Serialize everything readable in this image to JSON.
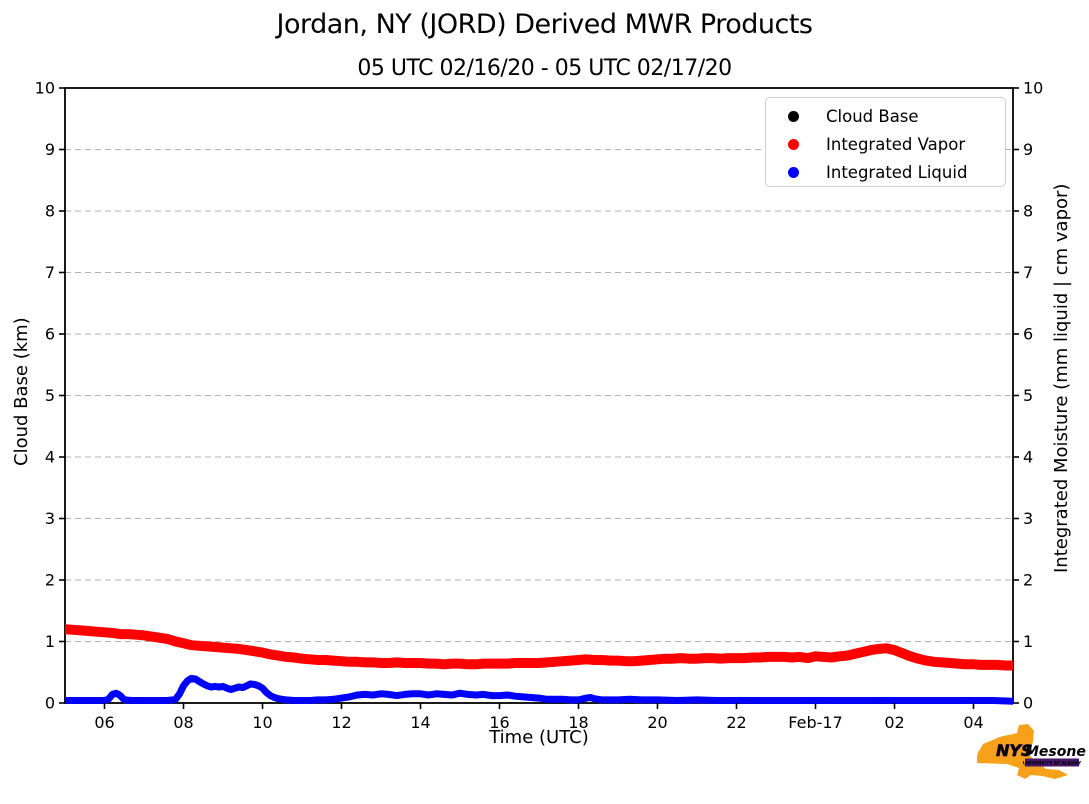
{
  "chart_data": {
    "type": "scatter",
    "title": "Jordan, NY (JORD) Derived MWR Products",
    "subtitle": "05 UTC 02/16/20 - 05 UTC 02/17/20",
    "xlabel": "Time (UTC)",
    "ylabel_left": "Cloud Base (km)",
    "ylabel_right": "Integrated Moisture (mm liquid | cm vapor)",
    "xlim_hours": [
      5,
      29
    ],
    "ylim": [
      0,
      10
    ],
    "grid": {
      "horizontal": true,
      "vertical": false,
      "style": "dashed",
      "color": "#b3b3b3"
    },
    "x_ticks": [
      {
        "t": 6,
        "label": "06"
      },
      {
        "t": 8,
        "label": "08"
      },
      {
        "t": 10,
        "label": "10"
      },
      {
        "t": 12,
        "label": "12"
      },
      {
        "t": 14,
        "label": "14"
      },
      {
        "t": 16,
        "label": "16"
      },
      {
        "t": 18,
        "label": "18"
      },
      {
        "t": 20,
        "label": "20"
      },
      {
        "t": 22,
        "label": "22"
      },
      {
        "t": 24,
        "label": "Feb-17"
      },
      {
        "t": 26,
        "label": "02"
      },
      {
        "t": 28,
        "label": "04"
      }
    ],
    "y_ticks_left": [
      "0",
      "1",
      "2",
      "3",
      "4",
      "5",
      "6",
      "7",
      "8",
      "9",
      "10"
    ],
    "y_ticks_right": [
      "0",
      "1",
      "2",
      "3",
      "4",
      "5",
      "6",
      "7",
      "8",
      "9",
      "10"
    ],
    "legend": {
      "position": "upper right",
      "items": [
        {
          "label": "Cloud Base",
          "color": "#000000"
        },
        {
          "label": "Integrated Vapor",
          "color": "#ff0000"
        },
        {
          "label": "Integrated Liquid",
          "color": "#0000ff"
        }
      ]
    },
    "series": [
      {
        "name": "Cloud Base",
        "color": "#000000",
        "marker": "dot",
        "stroke": 8,
        "points": []
      },
      {
        "name": "Integrated Vapor",
        "color": "#ff0000",
        "marker": "dot",
        "stroke": 10,
        "points": [
          [
            5.0,
            1.2
          ],
          [
            5.2,
            1.19
          ],
          [
            5.4,
            1.18
          ],
          [
            5.6,
            1.17
          ],
          [
            5.8,
            1.16
          ],
          [
            6.0,
            1.15
          ],
          [
            6.2,
            1.14
          ],
          [
            6.4,
            1.12
          ],
          [
            6.6,
            1.12
          ],
          [
            6.8,
            1.11
          ],
          [
            7.0,
            1.1
          ],
          [
            7.2,
            1.08
          ],
          [
            7.4,
            1.06
          ],
          [
            7.6,
            1.04
          ],
          [
            7.8,
            1.0
          ],
          [
            8.0,
            0.97
          ],
          [
            8.2,
            0.94
          ],
          [
            8.4,
            0.93
          ],
          [
            8.6,
            0.92
          ],
          [
            8.8,
            0.91
          ],
          [
            9.0,
            0.9
          ],
          [
            9.2,
            0.89
          ],
          [
            9.4,
            0.88
          ],
          [
            9.6,
            0.86
          ],
          [
            9.8,
            0.84
          ],
          [
            10.0,
            0.82
          ],
          [
            10.2,
            0.79
          ],
          [
            10.4,
            0.77
          ],
          [
            10.6,
            0.75
          ],
          [
            10.8,
            0.74
          ],
          [
            11.0,
            0.72
          ],
          [
            11.2,
            0.71
          ],
          [
            11.4,
            0.7
          ],
          [
            11.6,
            0.7
          ],
          [
            11.8,
            0.69
          ],
          [
            12.0,
            0.68
          ],
          [
            12.2,
            0.67
          ],
          [
            12.4,
            0.67
          ],
          [
            12.6,
            0.66
          ],
          [
            12.8,
            0.66
          ],
          [
            13.0,
            0.65
          ],
          [
            13.2,
            0.65
          ],
          [
            13.4,
            0.66
          ],
          [
            13.6,
            0.65
          ],
          [
            13.8,
            0.65
          ],
          [
            14.0,
            0.65
          ],
          [
            14.2,
            0.64
          ],
          [
            14.4,
            0.64
          ],
          [
            14.6,
            0.63
          ],
          [
            14.8,
            0.64
          ],
          [
            15.0,
            0.64
          ],
          [
            15.2,
            0.63
          ],
          [
            15.4,
            0.63
          ],
          [
            15.6,
            0.64
          ],
          [
            15.8,
            0.64
          ],
          [
            16.0,
            0.64
          ],
          [
            16.2,
            0.64
          ],
          [
            16.4,
            0.65
          ],
          [
            16.6,
            0.65
          ],
          [
            16.8,
            0.65
          ],
          [
            17.0,
            0.65
          ],
          [
            17.2,
            0.66
          ],
          [
            17.4,
            0.67
          ],
          [
            17.6,
            0.68
          ],
          [
            17.8,
            0.69
          ],
          [
            18.0,
            0.7
          ],
          [
            18.2,
            0.71
          ],
          [
            18.4,
            0.7
          ],
          [
            18.6,
            0.7
          ],
          [
            18.8,
            0.69
          ],
          [
            19.0,
            0.69
          ],
          [
            19.2,
            0.68
          ],
          [
            19.4,
            0.68
          ],
          [
            19.6,
            0.69
          ],
          [
            19.8,
            0.7
          ],
          [
            20.0,
            0.71
          ],
          [
            20.2,
            0.72
          ],
          [
            20.4,
            0.72
          ],
          [
            20.6,
            0.73
          ],
          [
            20.8,
            0.72
          ],
          [
            21.0,
            0.72
          ],
          [
            21.2,
            0.73
          ],
          [
            21.4,
            0.73
          ],
          [
            21.6,
            0.72
          ],
          [
            21.8,
            0.73
          ],
          [
            22.0,
            0.73
          ],
          [
            22.2,
            0.73
          ],
          [
            22.4,
            0.74
          ],
          [
            22.6,
            0.74
          ],
          [
            22.8,
            0.75
          ],
          [
            23.0,
            0.75
          ],
          [
            23.2,
            0.75
          ],
          [
            23.4,
            0.74
          ],
          [
            23.6,
            0.75
          ],
          [
            23.8,
            0.73
          ],
          [
            24.0,
            0.76
          ],
          [
            24.2,
            0.75
          ],
          [
            24.4,
            0.74
          ],
          [
            24.6,
            0.76
          ],
          [
            24.8,
            0.77
          ],
          [
            25.0,
            0.8
          ],
          [
            25.2,
            0.83
          ],
          [
            25.4,
            0.86
          ],
          [
            25.6,
            0.88
          ],
          [
            25.8,
            0.89
          ],
          [
            26.0,
            0.86
          ],
          [
            26.2,
            0.81
          ],
          [
            26.4,
            0.76
          ],
          [
            26.6,
            0.72
          ],
          [
            26.8,
            0.69
          ],
          [
            27.0,
            0.67
          ],
          [
            27.2,
            0.66
          ],
          [
            27.4,
            0.65
          ],
          [
            27.6,
            0.64
          ],
          [
            27.8,
            0.63
          ],
          [
            28.0,
            0.63
          ],
          [
            28.2,
            0.62
          ],
          [
            28.4,
            0.62
          ],
          [
            28.6,
            0.62
          ],
          [
            28.8,
            0.61
          ],
          [
            29.0,
            0.61
          ]
        ]
      },
      {
        "name": "Integrated Liquid",
        "color": "#0000ff",
        "marker": "dot",
        "stroke": 7,
        "points": [
          [
            5.0,
            0.04
          ],
          [
            5.2,
            0.04
          ],
          [
            5.4,
            0.04
          ],
          [
            5.6,
            0.04
          ],
          [
            5.8,
            0.04
          ],
          [
            6.0,
            0.04
          ],
          [
            6.1,
            0.06
          ],
          [
            6.2,
            0.14
          ],
          [
            6.3,
            0.16
          ],
          [
            6.4,
            0.12
          ],
          [
            6.5,
            0.05
          ],
          [
            6.7,
            0.04
          ],
          [
            7.0,
            0.04
          ],
          [
            7.3,
            0.04
          ],
          [
            7.6,
            0.04
          ],
          [
            7.8,
            0.06
          ],
          [
            7.9,
            0.15
          ],
          [
            8.0,
            0.28
          ],
          [
            8.1,
            0.36
          ],
          [
            8.2,
            0.4
          ],
          [
            8.3,
            0.39
          ],
          [
            8.4,
            0.35
          ],
          [
            8.5,
            0.31
          ],
          [
            8.6,
            0.28
          ],
          [
            8.7,
            0.26
          ],
          [
            8.8,
            0.27
          ],
          [
            8.9,
            0.26
          ],
          [
            9.0,
            0.27
          ],
          [
            9.1,
            0.24
          ],
          [
            9.2,
            0.22
          ],
          [
            9.3,
            0.24
          ],
          [
            9.4,
            0.26
          ],
          [
            9.5,
            0.25
          ],
          [
            9.6,
            0.28
          ],
          [
            9.7,
            0.31
          ],
          [
            9.8,
            0.3
          ],
          [
            9.9,
            0.28
          ],
          [
            10.0,
            0.24
          ],
          [
            10.1,
            0.17
          ],
          [
            10.2,
            0.12
          ],
          [
            10.3,
            0.09
          ],
          [
            10.4,
            0.07
          ],
          [
            10.6,
            0.05
          ],
          [
            10.8,
            0.04
          ],
          [
            11.0,
            0.04
          ],
          [
            11.2,
            0.04
          ],
          [
            11.4,
            0.05
          ],
          [
            11.6,
            0.05
          ],
          [
            11.8,
            0.06
          ],
          [
            12.0,
            0.08
          ],
          [
            12.2,
            0.1
          ],
          [
            12.4,
            0.13
          ],
          [
            12.6,
            0.14
          ],
          [
            12.8,
            0.13
          ],
          [
            13.0,
            0.15
          ],
          [
            13.2,
            0.14
          ],
          [
            13.4,
            0.12
          ],
          [
            13.6,
            0.14
          ],
          [
            13.8,
            0.15
          ],
          [
            14.0,
            0.15
          ],
          [
            14.2,
            0.13
          ],
          [
            14.4,
            0.15
          ],
          [
            14.6,
            0.14
          ],
          [
            14.8,
            0.13
          ],
          [
            15.0,
            0.16
          ],
          [
            15.2,
            0.14
          ],
          [
            15.4,
            0.13
          ],
          [
            15.6,
            0.14
          ],
          [
            15.8,
            0.12
          ],
          [
            16.0,
            0.12
          ],
          [
            16.2,
            0.13
          ],
          [
            16.4,
            0.11
          ],
          [
            16.6,
            0.1
          ],
          [
            16.8,
            0.09
          ],
          [
            17.0,
            0.08
          ],
          [
            17.2,
            0.06
          ],
          [
            17.4,
            0.06
          ],
          [
            17.6,
            0.06
          ],
          [
            17.8,
            0.05
          ],
          [
            18.0,
            0.05
          ],
          [
            18.2,
            0.08
          ],
          [
            18.3,
            0.09
          ],
          [
            18.4,
            0.07
          ],
          [
            18.6,
            0.05
          ],
          [
            18.8,
            0.05
          ],
          [
            19.0,
            0.05
          ],
          [
            19.3,
            0.06
          ],
          [
            19.6,
            0.05
          ],
          [
            20.0,
            0.05
          ],
          [
            20.5,
            0.04
          ],
          [
            21.0,
            0.05
          ],
          [
            21.5,
            0.04
          ],
          [
            22.0,
            0.04
          ],
          [
            22.5,
            0.04
          ],
          [
            23.0,
            0.04
          ],
          [
            23.5,
            0.04
          ],
          [
            24.0,
            0.04
          ],
          [
            24.5,
            0.04
          ],
          [
            25.0,
            0.04
          ],
          [
            25.5,
            0.04
          ],
          [
            26.0,
            0.04
          ],
          [
            26.5,
            0.04
          ],
          [
            27.0,
            0.04
          ],
          [
            27.5,
            0.04
          ],
          [
            28.0,
            0.04
          ],
          [
            28.5,
            0.04
          ],
          [
            29.0,
            0.03
          ]
        ]
      }
    ]
  },
  "logo": {
    "org": "NYS",
    "name": "Mesonet",
    "tagline": "UNIVERSITY AT ALBANY",
    "state_color": "#F7A11B",
    "accent_color": "#46166B"
  }
}
